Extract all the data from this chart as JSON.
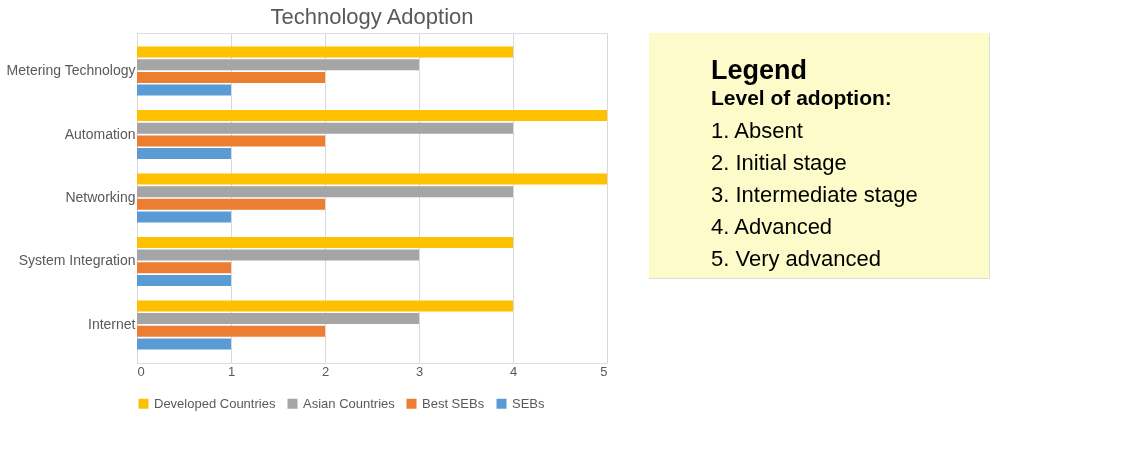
{
  "chart_data": {
    "type": "bar",
    "orientation": "horizontal",
    "title": "Technology Adoption",
    "categories": [
      "Metering Technology",
      "Automation",
      "Networking",
      "System Integration",
      "Internet"
    ],
    "series": [
      {
        "name": "Developed Countries",
        "color": "#ffc000",
        "values": [
          4,
          5,
          5,
          4,
          4
        ]
      },
      {
        "name": "Asian Countries",
        "color": "#a5a5a5",
        "values": [
          3,
          4,
          4,
          3,
          3
        ]
      },
      {
        "name": "Best SEBs",
        "color": "#ed7d31",
        "values": [
          2,
          2,
          2,
          1,
          2
        ]
      },
      {
        "name": "SEBs",
        "color": "#5b9bd5",
        "values": [
          1,
          1,
          1,
          1,
          1
        ]
      }
    ],
    "xlim": [
      0,
      5
    ],
    "xticks": [
      0,
      1,
      2,
      3,
      4,
      5
    ],
    "grid": "x",
    "legend": "bottom",
    "annotations": [
      "Legend",
      "Level of adoption:",
      "1.  Absent",
      "2.  Initial stage",
      "3.  Intermediate stage",
      "4.  Advanced",
      "5.  Very advanced"
    ]
  }
}
